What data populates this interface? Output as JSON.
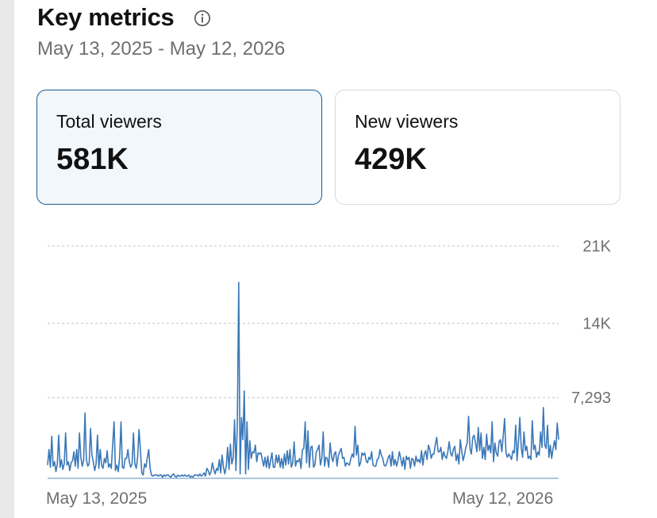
{
  "header": {
    "title": "Key metrics",
    "date_range": "May 13, 2025 - May 12, 2026"
  },
  "metrics": [
    {
      "label": "Total viewers",
      "value": "581K",
      "selected": true
    },
    {
      "label": "New viewers",
      "value": "429K",
      "selected": false
    }
  ],
  "colors": {
    "line": "#3b78b8",
    "selected_border": "#1c5a8e",
    "selected_bg": "#f1f7fb"
  },
  "chart_data": {
    "type": "line",
    "y_ticks": [
      {
        "label": "21K",
        "value": 21000
      },
      {
        "label": "14K",
        "value": 14000
      },
      {
        "label": "7,293",
        "value": 7293
      }
    ],
    "ylim": [
      0,
      21000
    ],
    "x_start_label": "May 13, 2025",
    "x_end_label": "May 12, 2026",
    "grid": "dashed horizontal",
    "series": [
      {
        "values": [
          1200,
          2600,
          1000,
          3800,
          1100,
          1500,
          600,
          1300,
          3900,
          1000,
          1700,
          800,
          1300,
          4100,
          1200,
          1500,
          700,
          1400,
          1600,
          2400,
          1100,
          2600,
          900,
          4100,
          1900,
          1100,
          1600,
          5900,
          1700,
          1100,
          1300,
          4500,
          2100,
          1500,
          700,
          1300,
          3900,
          900,
          2600,
          1200,
          900,
          1800,
          1400,
          2500,
          1000,
          1300,
          900,
          3100,
          5100,
          700,
          1200,
          600,
          1900,
          5100,
          1000,
          900,
          1800,
          1800,
          2600,
          1500,
          1000,
          1300,
          4100,
          1300,
          900,
          1900,
          4400,
          2600,
          500,
          300,
          1300,
          1000,
          1900,
          2600,
          900,
          300,
          200,
          300,
          300,
          300,
          200,
          300,
          300,
          100,
          300,
          200,
          300,
          300,
          200,
          100,
          300,
          400,
          200,
          100,
          300,
          200,
          200,
          300,
          200,
          300,
          200,
          200,
          300,
          100,
          200,
          100,
          300,
          300,
          300,
          200,
          400,
          200,
          300,
          500,
          200,
          900,
          700,
          300,
          600,
          1400,
          800,
          400,
          900,
          700,
          1700,
          500,
          2100,
          1000,
          400,
          1100,
          2800,
          800,
          3100,
          1300,
          1800,
          5300,
          700,
          5000,
          17700,
          400,
          5500,
          3500,
          7900,
          400,
          5100,
          800,
          3400,
          1800,
          2400,
          2300,
          3000,
          1500,
          2300,
          2200,
          2300,
          1700,
          1100,
          1900,
          1000,
          2000,
          900,
          1600,
          2300,
          1000,
          1000,
          2100,
          1400,
          2100,
          1000,
          1800,
          900,
          2200,
          1200,
          2500,
          1300,
          2600,
          1000,
          1400,
          3300,
          1100,
          1600,
          1500,
          1800,
          900,
          2600,
          2700,
          5100,
          1400,
          4300,
          1000,
          2800,
          2900,
          1000,
          1200,
          2400,
          2600,
          3000,
          1200,
          1800,
          4200,
          1100,
          1900,
          1800,
          1000,
          3200,
          2000,
          1500,
          2200,
          2400,
          1100,
          2100,
          2400,
          2700,
          1800,
          1900,
          1100,
          1400,
          1300,
          1200,
          1800,
          2200,
          1900,
          4700,
          2100,
          3000,
          1100,
          1400,
          2300,
          2100,
          2300,
          1600,
          1400,
          1900,
          1700,
          2400,
          1200,
          1100,
          1100,
          1700,
          1800,
          2600,
          2100,
          1800,
          1200,
          1100,
          1400,
          1900,
          2100,
          1100,
          2400,
          1200,
          1700,
          1100,
          1600,
          2400,
          1800,
          1100,
          1900,
          800,
          2000,
          1700,
          1900,
          900,
          1800,
          1700,
          1100,
          2000,
          1500,
          1700,
          1400,
          2500,
          1200,
          2200,
          2500,
          1700,
          3000,
          2600,
          1800,
          2200,
          2200,
          3100,
          3700,
          2400,
          2400,
          2800,
          1700,
          2400,
          2000,
          1800,
          2400,
          3300,
          2300,
          2000,
          2600,
          2900,
          1600,
          2200,
          1300,
          3500,
          2500,
          1600,
          2100,
          2800,
          3200,
          5600,
          2700,
          2200,
          3700,
          3900,
          3200,
          2400,
          4600,
          2500,
          4100,
          1800,
          2800,
          1700,
          4000,
          2500,
          3000,
          2300,
          5100,
          1500,
          3200,
          2300,
          2000,
          3300,
          3500,
          2400,
          3800,
          5400,
          2300,
          1900,
          2200,
          2000,
          1700,
          2500,
          2300,
          4800,
          1600,
          3300,
          5500,
          2800,
          1900,
          4200,
          2500,
          2900,
          1800,
          2000,
          1700,
          5200,
          2600,
          3000,
          1900,
          2400,
          2100,
          4200,
          2800,
          6400,
          3000,
          2700,
          4800,
          1900,
          3000,
          1800,
          2700,
          3400,
          2600,
          5000,
          3500
        ]
      }
    ]
  }
}
